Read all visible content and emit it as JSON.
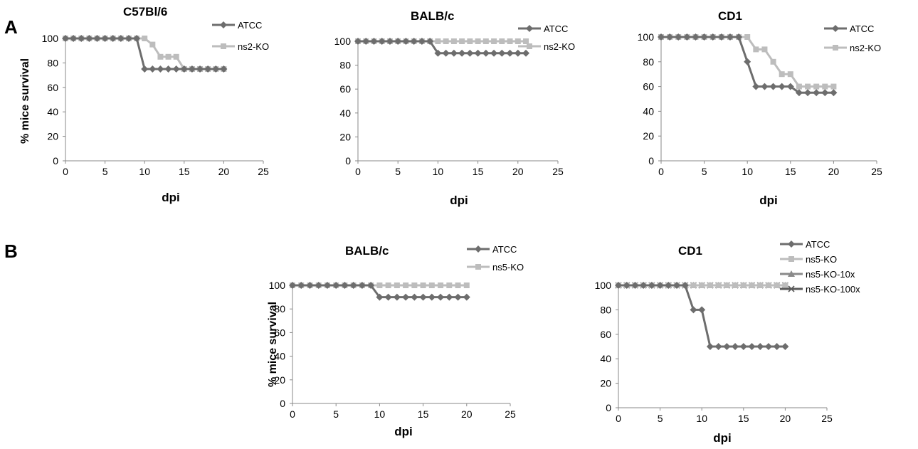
{
  "panel_labels": [
    "A",
    "B"
  ],
  "colors": {
    "ATCC": "#6d6d6d",
    "KO": "#bdbdbd",
    "KO10x": "#8a8a8a",
    "KO100x": "#5a5a5a"
  },
  "chart_data": [
    {
      "type": "line",
      "title": "C57Bl/6",
      "xlabel": "dpi",
      "ylabel": "% mice survival",
      "xlim": [
        0,
        25
      ],
      "ylim": [
        0,
        100
      ],
      "xticks": [
        0,
        5,
        10,
        15,
        20,
        25
      ],
      "yticks": [
        0,
        20,
        40,
        60,
        80,
        100
      ],
      "grid": false,
      "legend": "top-right",
      "series": [
        {
          "name": "ATCC",
          "marker": "diamond",
          "color": "#6d6d6d",
          "x": [
            0,
            1,
            2,
            3,
            4,
            5,
            6,
            7,
            8,
            9,
            10,
            11,
            12,
            13,
            14,
            15,
            16,
            17,
            18,
            19,
            20
          ],
          "y": [
            100,
            100,
            100,
            100,
            100,
            100,
            100,
            100,
            100,
            100,
            75,
            75,
            75,
            75,
            75,
            75,
            75,
            75,
            75,
            75,
            75
          ]
        },
        {
          "name": "ns2-KO",
          "marker": "square",
          "color": "#bdbdbd",
          "x": [
            0,
            1,
            2,
            3,
            4,
            5,
            6,
            7,
            8,
            9,
            10,
            11,
            12,
            13,
            14,
            15,
            16,
            17,
            18,
            19,
            20
          ],
          "y": [
            100,
            100,
            100,
            100,
            100,
            100,
            100,
            100,
            100,
            100,
            100,
            95,
            85,
            85,
            85,
            75,
            75,
            75,
            75,
            75,
            75
          ]
        }
      ]
    },
    {
      "type": "line",
      "title": "BALB/c",
      "xlabel": "dpi",
      "ylabel": "",
      "xlim": [
        0,
        25
      ],
      "ylim": [
        0,
        100
      ],
      "xticks": [
        0,
        5,
        10,
        15,
        20,
        25
      ],
      "yticks": [
        0,
        20,
        40,
        60,
        80,
        100
      ],
      "grid": false,
      "legend": "top-right",
      "series": [
        {
          "name": "ATCC",
          "marker": "diamond",
          "color": "#6d6d6d",
          "x": [
            0,
            1,
            2,
            3,
            4,
            5,
            6,
            7,
            8,
            9,
            10,
            11,
            12,
            13,
            14,
            15,
            16,
            17,
            18,
            19,
            20,
            21
          ],
          "y": [
            100,
            100,
            100,
            100,
            100,
            100,
            100,
            100,
            100,
            100,
            90,
            90,
            90,
            90,
            90,
            90,
            90,
            90,
            90,
            90,
            90,
            90
          ]
        },
        {
          "name": "ns2-KO",
          "marker": "square",
          "color": "#bdbdbd",
          "x": [
            0,
            1,
            2,
            3,
            4,
            5,
            6,
            7,
            8,
            9,
            10,
            11,
            12,
            13,
            14,
            15,
            16,
            17,
            18,
            19,
            20,
            21
          ],
          "y": [
            100,
            100,
            100,
            100,
            100,
            100,
            100,
            100,
            100,
            100,
            100,
            100,
            100,
            100,
            100,
            100,
            100,
            100,
            100,
            100,
            100,
            100
          ]
        }
      ]
    },
    {
      "type": "line",
      "title": "CD1",
      "xlabel": "dpi",
      "ylabel": "",
      "xlim": [
        0,
        25
      ],
      "ylim": [
        0,
        100
      ],
      "xticks": [
        0,
        5,
        10,
        15,
        20,
        25
      ],
      "yticks": [
        0,
        20,
        40,
        60,
        80,
        100
      ],
      "grid": false,
      "legend": "top-right",
      "series": [
        {
          "name": "ATCC",
          "marker": "diamond",
          "color": "#6d6d6d",
          "x": [
            0,
            1,
            2,
            3,
            4,
            5,
            6,
            7,
            8,
            9,
            10,
            11,
            12,
            13,
            14,
            15,
            16,
            17,
            18,
            19,
            20
          ],
          "y": [
            100,
            100,
            100,
            100,
            100,
            100,
            100,
            100,
            100,
            100,
            80,
            60,
            60,
            60,
            60,
            60,
            55,
            55,
            55,
            55,
            55
          ]
        },
        {
          "name": "ns2-KO",
          "marker": "square",
          "color": "#bdbdbd",
          "x": [
            0,
            1,
            2,
            3,
            4,
            5,
            6,
            7,
            8,
            9,
            10,
            11,
            12,
            13,
            14,
            15,
            16,
            17,
            18,
            19,
            20
          ],
          "y": [
            100,
            100,
            100,
            100,
            100,
            100,
            100,
            100,
            100,
            100,
            100,
            90,
            90,
            80,
            70,
            70,
            60,
            60,
            60,
            60,
            60
          ]
        }
      ]
    },
    {
      "type": "line",
      "title": "BALB/c",
      "xlabel": "dpi",
      "ylabel": "% mice survival",
      "xlim": [
        0,
        25
      ],
      "ylim": [
        0,
        100
      ],
      "xticks": [
        0,
        5,
        10,
        15,
        20,
        25
      ],
      "yticks": [
        0,
        20,
        40,
        60,
        80,
        100
      ],
      "grid": false,
      "legend": "top-right",
      "series": [
        {
          "name": "ATCC",
          "marker": "diamond",
          "color": "#6d6d6d",
          "x": [
            0,
            1,
            2,
            3,
            4,
            5,
            6,
            7,
            8,
            9,
            10,
            11,
            12,
            13,
            14,
            15,
            16,
            17,
            18,
            19,
            20
          ],
          "y": [
            100,
            100,
            100,
            100,
            100,
            100,
            100,
            100,
            100,
            100,
            90,
            90,
            90,
            90,
            90,
            90,
            90,
            90,
            90,
            90,
            90
          ]
        },
        {
          "name": "ns5-KO",
          "marker": "square",
          "color": "#bdbdbd",
          "x": [
            0,
            1,
            2,
            3,
            4,
            5,
            6,
            7,
            8,
            9,
            10,
            11,
            12,
            13,
            14,
            15,
            16,
            17,
            18,
            19,
            20
          ],
          "y": [
            100,
            100,
            100,
            100,
            100,
            100,
            100,
            100,
            100,
            100,
            100,
            100,
            100,
            100,
            100,
            100,
            100,
            100,
            100,
            100,
            100
          ]
        }
      ]
    },
    {
      "type": "line",
      "title": "CD1",
      "xlabel": "dpi",
      "ylabel": "",
      "xlim": [
        0,
        25
      ],
      "ylim": [
        0,
        100
      ],
      "xticks": [
        0,
        5,
        10,
        15,
        20,
        25
      ],
      "yticks": [
        0,
        20,
        40,
        60,
        80,
        100
      ],
      "grid": false,
      "legend": "top-right",
      "series": [
        {
          "name": "ATCC",
          "marker": "diamond",
          "color": "#6d6d6d",
          "x": [
            0,
            1,
            2,
            3,
            4,
            5,
            6,
            7,
            8,
            9,
            10,
            11,
            12,
            13,
            14,
            15,
            16,
            17,
            18,
            19,
            20
          ],
          "y": [
            100,
            100,
            100,
            100,
            100,
            100,
            100,
            100,
            100,
            80,
            80,
            50,
            50,
            50,
            50,
            50,
            50,
            50,
            50,
            50,
            50
          ]
        },
        {
          "name": "ns5-KO",
          "marker": "square",
          "color": "#bdbdbd",
          "x": [
            0,
            1,
            2,
            3,
            4,
            5,
            6,
            7,
            8,
            9,
            10,
            11,
            12,
            13,
            14,
            15,
            16,
            17,
            18,
            19,
            20
          ],
          "y": [
            100,
            100,
            100,
            100,
            100,
            100,
            100,
            100,
            100,
            100,
            100,
            100,
            100,
            100,
            100,
            100,
            100,
            100,
            100,
            100,
            100
          ]
        },
        {
          "name": "ns5-KO-10x",
          "marker": "triangle",
          "color": "#8a8a8a",
          "x": [
            0,
            1,
            2,
            3,
            4,
            5,
            6,
            7,
            8,
            9,
            10,
            11,
            12,
            13,
            14,
            15,
            16,
            17,
            18,
            19,
            20
          ],
          "y": [
            100,
            100,
            100,
            100,
            100,
            100,
            100,
            100,
            100,
            100,
            100,
            100,
            100,
            100,
            100,
            100,
            100,
            100,
            100,
            100,
            100
          ]
        },
        {
          "name": "ns5-KO-100x",
          "marker": "x",
          "color": "#5a5a5a",
          "x": [
            0,
            1,
            2,
            3,
            4,
            5,
            6,
            7,
            8,
            9,
            10,
            11,
            12,
            13,
            14,
            15,
            16,
            17,
            18,
            19,
            20
          ],
          "y": [
            100,
            100,
            100,
            100,
            100,
            100,
            100,
            100,
            100,
            100,
            100,
            100,
            100,
            100,
            100,
            100,
            100,
            100,
            100,
            100,
            100
          ]
        }
      ]
    }
  ]
}
